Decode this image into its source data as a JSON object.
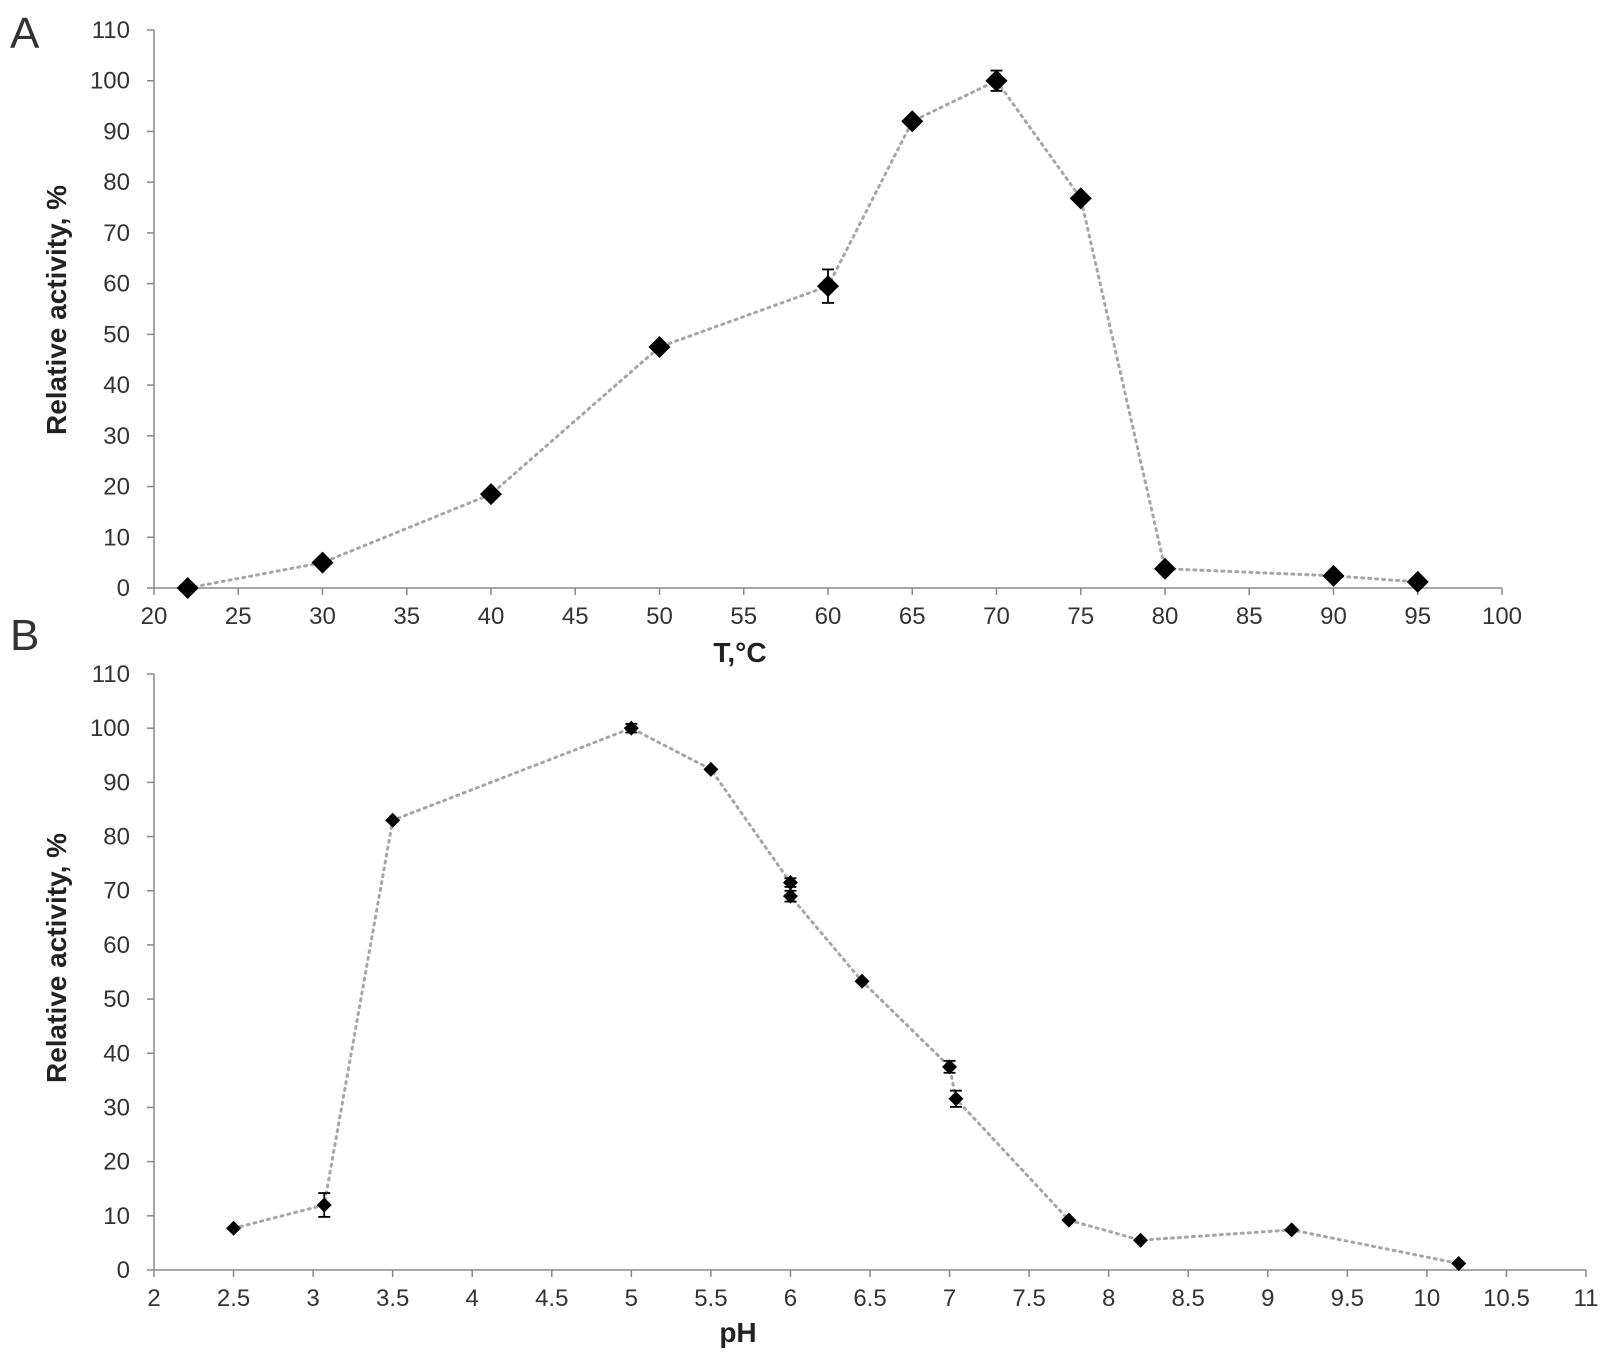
{
  "chart_data": [
    {
      "panel_label": "A",
      "type": "scatter",
      "xlabel": "T,°C",
      "ylabel": "Relative activity, %",
      "xlim": [
        20,
        100
      ],
      "ylim": [
        0,
        110
      ],
      "xticks": [
        20,
        25,
        30,
        35,
        40,
        45,
        50,
        55,
        60,
        65,
        70,
        75,
        80,
        85,
        90,
        95,
        100
      ],
      "yticks": [
        0,
        10,
        20,
        30,
        40,
        50,
        60,
        70,
        80,
        90,
        100,
        110
      ],
      "marker": "diamond",
      "line_style": "dotted",
      "grid": false,
      "series": [
        {
          "x": [
            22,
            30,
            40,
            50,
            60,
            65,
            70,
            75,
            80,
            90,
            95
          ],
          "y": [
            0,
            5,
            18.5,
            47.5,
            59.5,
            92,
            100,
            76.8,
            3.8,
            2.4,
            1.2
          ],
          "error": [
            0,
            0,
            0,
            0,
            3.3,
            0,
            2,
            0,
            0,
            0,
            0
          ]
        }
      ]
    },
    {
      "panel_label": "B",
      "type": "scatter",
      "xlabel": "pH",
      "ylabel": "Relative activity, %",
      "xlim": [
        2,
        11
      ],
      "ylim": [
        0,
        110
      ],
      "xticks": [
        2,
        2.5,
        3,
        3.5,
        4,
        4.5,
        5,
        5.5,
        6,
        6.5,
        7,
        7.5,
        8,
        8.5,
        9,
        9.5,
        10,
        10.5,
        11
      ],
      "yticks": [
        0,
        10,
        20,
        30,
        40,
        50,
        60,
        70,
        80,
        90,
        100,
        110
      ],
      "marker": "diamond",
      "line_style": "dotted",
      "grid": false,
      "series": [
        {
          "x": [
            2.5,
            3.07,
            3.5,
            5,
            5.5,
            6,
            6,
            6.45,
            7,
            7.04,
            7.75,
            8.2,
            9.15,
            10.2
          ],
          "y": [
            7.7,
            12,
            83,
            100,
            92.4,
            71.5,
            69,
            53.3,
            37.5,
            31.6,
            9.2,
            5.5,
            7.4,
            1.2
          ],
          "error": [
            0,
            2.2,
            0,
            0.8,
            0,
            0.8,
            1,
            0,
            1.1,
            1.5,
            0,
            0,
            0,
            0
          ]
        }
      ]
    }
  ]
}
